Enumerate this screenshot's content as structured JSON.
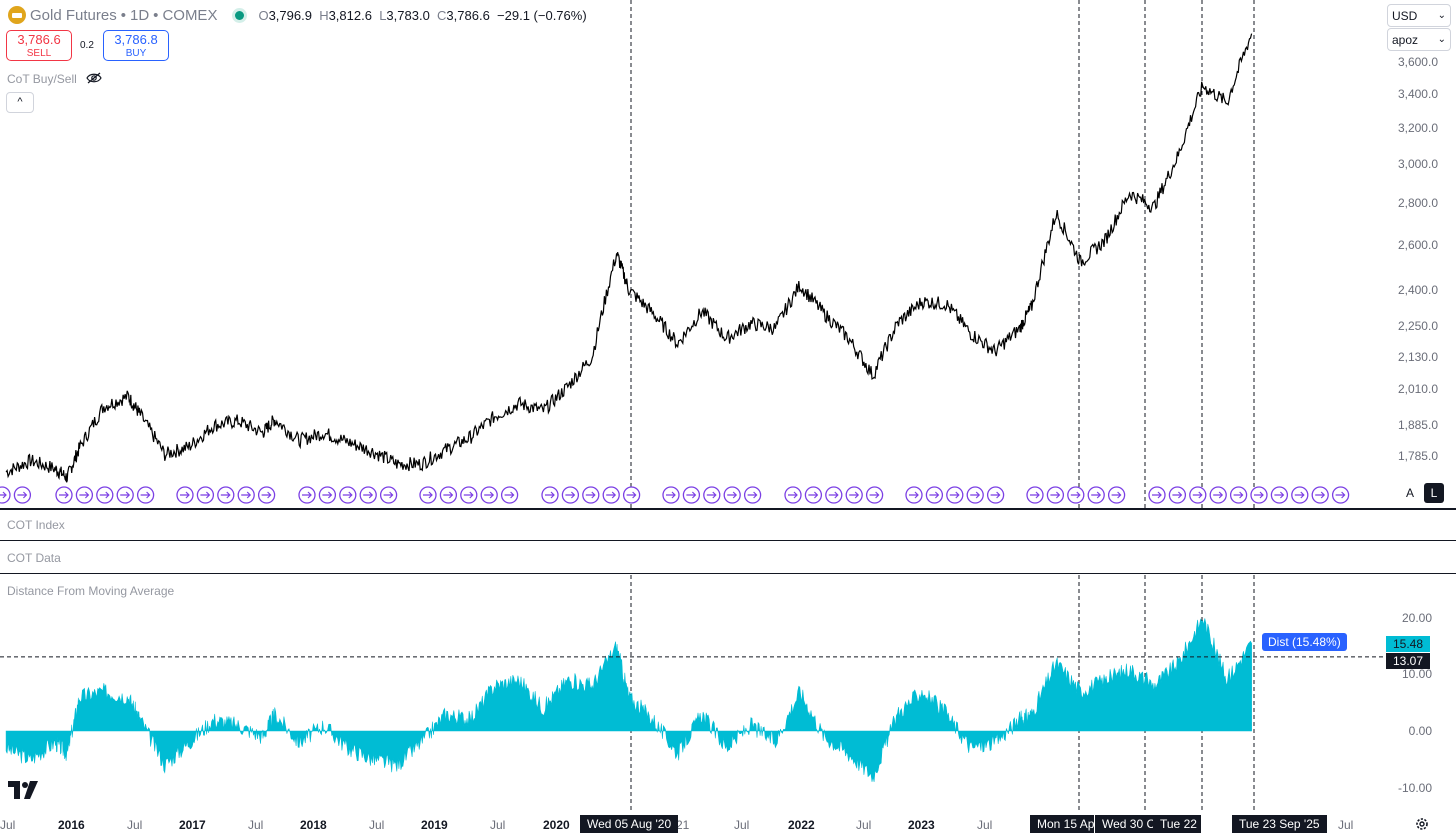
{
  "header": {
    "symbol": "Gold Futures",
    "interval": "1D",
    "exchange": "COMEX",
    "separator": "•",
    "ohlc": {
      "o_label": "O",
      "o": "3,796.9",
      "h_label": "H",
      "h": "3,812.6",
      "l_label": "L",
      "l": "3,783.0",
      "c_label": "C",
      "c": "3,786.6",
      "change": "−29.1 (−0.76%)"
    }
  },
  "trade": {
    "sell_price": "3,786.6",
    "sell_label": "SELL",
    "spread": "0.2",
    "buy_price": "3,786.8",
    "buy_label": "BUY"
  },
  "indicators": {
    "cot_buysell": "CoT Buy/Sell",
    "cot_index": "COT Index",
    "cot_data": "COT Data",
    "dist_ma": "Distance From Moving Average"
  },
  "controls": {
    "currency": "USD",
    "account": "apoz",
    "collapse": "^",
    "auto_btn": "A",
    "log_btn": "L",
    "dist_label": "Dist (15.48%)",
    "dist_value": "15.48",
    "hline_value": "13.07"
  },
  "colors": {
    "price": "#000000",
    "dist": "#00bcd4",
    "event": "#7b3fe4",
    "accent": "#2962ff"
  },
  "chart_data": [
    {
      "type": "line",
      "name": "price",
      "y_ticks": [
        "1,785.0",
        "1,885.0",
        "2,010.0",
        "2,130.0",
        "2,250.0",
        "2,400.0",
        "2,600.0",
        "2,800.0",
        "3,000.0",
        "3,200.0",
        "3,400.0",
        "3,600.0"
      ],
      "y_scale": "log",
      "x": [
        2015.5,
        2015.7,
        2015.9,
        2016.0,
        2016.1,
        2016.3,
        2016.5,
        2016.6,
        2016.8,
        2017.0,
        2017.2,
        2017.4,
        2017.6,
        2017.7,
        2017.9,
        2018.1,
        2018.3,
        2018.5,
        2018.7,
        2018.9,
        2019.1,
        2019.3,
        2019.5,
        2019.7,
        2019.9,
        2020.1,
        2020.3,
        2020.5,
        2020.6,
        2020.8,
        2021.0,
        2021.2,
        2021.4,
        2021.6,
        2021.8,
        2022.0,
        2022.2,
        2022.4,
        2022.6,
        2022.8,
        2023.0,
        2023.2,
        2023.4,
        2023.6,
        2023.8,
        2023.9,
        2024.1,
        2024.3,
        2024.5,
        2024.7,
        2024.9,
        2025.1,
        2025.3,
        2025.5,
        2025.7
      ],
      "y": [
        1735,
        1770,
        1745,
        1718,
        1810,
        1950,
        1985,
        1920,
        1790,
        1815,
        1885,
        1900,
        1860,
        1905,
        1835,
        1860,
        1830,
        1800,
        1760,
        1760,
        1805,
        1845,
        1915,
        1960,
        1935,
        2020,
        2130,
        2560,
        2400,
        2300,
        2180,
        2310,
        2200,
        2260,
        2240,
        2420,
        2300,
        2200,
        2060,
        2260,
        2350,
        2340,
        2220,
        2150,
        2240,
        2330,
        2750,
        2520,
        2620,
        2850,
        2780,
        3050,
        3450,
        3350,
        3786.6
      ],
      "events": [
        "Wed 05 Aug '20",
        "Mon 15 Ap",
        "Wed 30 C",
        "Tue 22",
        "Tue 23 Sep '25"
      ],
      "x_ticks": [
        "Jul",
        "2016",
        "Jul",
        "2017",
        "Jul",
        "2018",
        "Jul",
        "2019",
        "Jul",
        "2020",
        "21",
        "Jul",
        "2022",
        "Jul",
        "2023",
        "Jul",
        "Jul"
      ]
    },
    {
      "type": "area",
      "name": "Dist",
      "y_ticks": [
        "20.00",
        "10.00",
        "0.00",
        "-10.00"
      ],
      "ylim": [
        -12,
        21
      ],
      "x": [
        2015.5,
        2015.7,
        2015.9,
        2016.0,
        2016.1,
        2016.3,
        2016.5,
        2016.6,
        2016.8,
        2017.0,
        2017.2,
        2017.4,
        2017.6,
        2017.7,
        2017.9,
        2018.1,
        2018.3,
        2018.5,
        2018.7,
        2018.9,
        2019.1,
        2019.3,
        2019.5,
        2019.7,
        2019.9,
        2020.1,
        2020.3,
        2020.5,
        2020.6,
        2020.8,
        2021.0,
        2021.2,
        2021.4,
        2021.6,
        2021.8,
        2022.0,
        2022.2,
        2022.4,
        2022.6,
        2022.8,
        2023.0,
        2023.2,
        2023.4,
        2023.6,
        2023.8,
        2023.9,
        2024.1,
        2024.3,
        2024.5,
        2024.7,
        2024.9,
        2025.1,
        2025.3,
        2025.5,
        2025.7
      ],
      "y": [
        -3,
        -5,
        -2,
        -4,
        6,
        7,
        6,
        2,
        -6,
        -2,
        2,
        1,
        -1,
        3,
        -2,
        1,
        -3,
        -5,
        -6,
        -2,
        3,
        2,
        8,
        9,
        4,
        9,
        8,
        15,
        6,
        2,
        -4,
        3,
        -3,
        1,
        -2,
        7,
        -1,
        -4,
        -8,
        3,
        7,
        3,
        -3,
        -2,
        2,
        3,
        12,
        7,
        9,
        11,
        8,
        12,
        20,
        9,
        15.48
      ],
      "hline": 13.07
    }
  ]
}
